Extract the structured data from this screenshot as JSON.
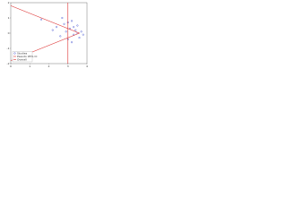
{
  "chart_data": {
    "type": "scatter",
    "xlim": [
      0,
      4
    ],
    "xticks": [
      0,
      1,
      2,
      3,
      4
    ],
    "ylim": [
      -2,
      2
    ],
    "yticks": [
      -2,
      -1,
      0,
      1,
      2
    ],
    "series": [
      {
        "name": "Studies",
        "color": "#3344cc",
        "x": [
          2.4,
          2.6,
          2.8,
          2.9,
          3.0,
          3.1,
          3.2,
          3.3,
          3.4,
          3.5,
          3.6,
          3.7,
          2.7,
          3.0,
          3.2,
          3.5,
          1.6,
          2.2,
          3.3,
          3.8
        ],
        "values": [
          0.4,
          -0.2,
          0.6,
          0.1,
          -0.4,
          0.3,
          0.8,
          -0.1,
          0.2,
          0.5,
          -0.3,
          0.1,
          1.0,
          0.7,
          -0.6,
          0.0,
          0.9,
          0.2,
          0.4,
          -0.1
        ]
      },
      {
        "name": "Pseudo 95% CI",
        "color": "#dd3333",
        "kind": "line",
        "x": [
          0,
          3.6,
          0
        ],
        "values": [
          1.8,
          0,
          -1.8
        ]
      },
      {
        "name": "Overall",
        "color": "#dd3333",
        "kind": "line",
        "x": [
          3.0,
          3.0
        ],
        "values": [
          -2,
          2
        ]
      }
    ],
    "grid": false,
    "legend": "bottom-left"
  }
}
